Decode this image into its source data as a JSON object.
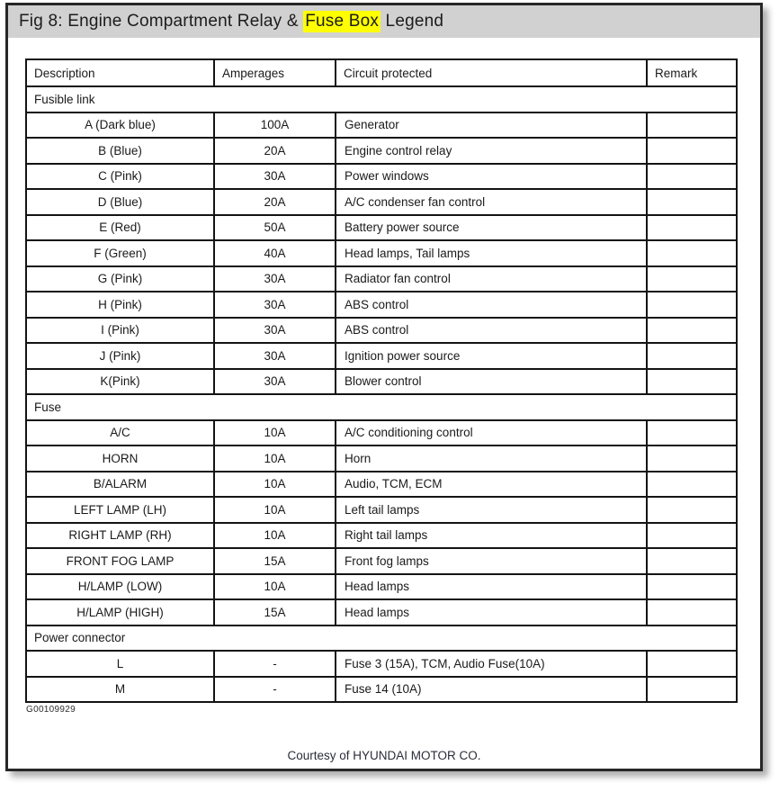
{
  "title": {
    "prefix": "Fig 8: Engine Compartment Relay & ",
    "highlight": "Fuse Box",
    "suffix": " Legend"
  },
  "colors": {
    "title_bar_bg": "#d1d1d1",
    "highlight_bg": "#ffff00",
    "frame_border": "#272727",
    "table_ink": "#141414"
  },
  "table": {
    "headers": [
      "Description",
      "Amperages",
      "Circuit protected",
      "Remark"
    ],
    "sections": [
      {
        "label": "Fusible link",
        "rows": [
          {
            "description": "A (Dark blue)",
            "amperage": "100A",
            "circuit": "Generator",
            "remark": ""
          },
          {
            "description": "B (Blue)",
            "amperage": "20A",
            "circuit": "Engine control relay",
            "remark": ""
          },
          {
            "description": "C (Pink)",
            "amperage": "30A",
            "circuit": "Power windows",
            "remark": ""
          },
          {
            "description": "D (Blue)",
            "amperage": "20A",
            "circuit": "A/C condenser fan control",
            "remark": ""
          },
          {
            "description": "E (Red)",
            "amperage": "50A",
            "circuit": "Battery power source",
            "remark": ""
          },
          {
            "description": "F (Green)",
            "amperage": "40A",
            "circuit": "Head lamps, Tail lamps",
            "remark": ""
          },
          {
            "description": "G (Pink)",
            "amperage": "30A",
            "circuit": "Radiator fan control",
            "remark": ""
          },
          {
            "description": "H (Pink)",
            "amperage": "30A",
            "circuit": "ABS control",
            "remark": ""
          },
          {
            "description": "I (Pink)",
            "amperage": "30A",
            "circuit": "ABS control",
            "remark": ""
          },
          {
            "description": "J (Pink)",
            "amperage": "30A",
            "circuit": "Ignition power source",
            "remark": ""
          },
          {
            "description": "K(Pink)",
            "amperage": "30A",
            "circuit": "Blower control",
            "remark": ""
          }
        ]
      },
      {
        "label": "Fuse",
        "rows": [
          {
            "description": "A/C",
            "amperage": "10A",
            "circuit": "A/C conditioning control",
            "remark": ""
          },
          {
            "description": "HORN",
            "amperage": "10A",
            "circuit": "Horn",
            "remark": ""
          },
          {
            "description": "B/ALARM",
            "amperage": "10A",
            "circuit": "Audio, TCM, ECM",
            "remark": ""
          },
          {
            "description": "LEFT LAMP (LH)",
            "amperage": "10A",
            "circuit": "Left tail lamps",
            "remark": ""
          },
          {
            "description": "RIGHT LAMP (RH)",
            "amperage": "10A",
            "circuit": "Right tail lamps",
            "remark": ""
          },
          {
            "description": "FRONT FOG LAMP",
            "amperage": "15A",
            "circuit": "Front fog lamps",
            "remark": ""
          },
          {
            "description": "H/LAMP (LOW)",
            "amperage": "10A",
            "circuit": "Head lamps",
            "remark": ""
          },
          {
            "description": "H/LAMP (HIGH)",
            "amperage": "15A",
            "circuit": "Head lamps",
            "remark": ""
          }
        ]
      },
      {
        "label": "Power connector",
        "rows": [
          {
            "description": "L",
            "amperage": "-",
            "circuit": "Fuse 3 (15A), TCM, Audio Fuse(10A)",
            "remark": ""
          },
          {
            "description": "M",
            "amperage": "-",
            "circuit": "Fuse 14 (10A)",
            "remark": ""
          }
        ]
      }
    ]
  },
  "figure_id": "G00109929",
  "footer": "Courtesy of HYUNDAI MOTOR CO."
}
